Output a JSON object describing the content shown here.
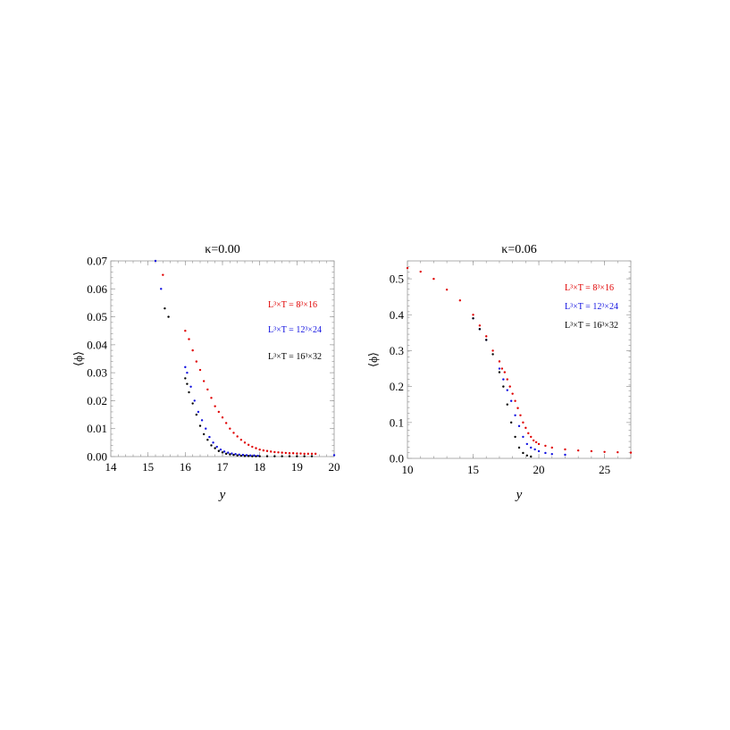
{
  "chart_data": [
    {
      "type": "scatter",
      "title": "κ=0.00",
      "xlabel": "y",
      "ylabel": "⟨ϕ⟩",
      "xlim": [
        14,
        20
      ],
      "ylim": [
        0,
        0.07
      ],
      "xticks": [
        "14",
        "15",
        "16",
        "17",
        "18",
        "19",
        "20"
      ],
      "yticks": [
        "0.00",
        "0.01",
        "0.02",
        "0.03",
        "0.04",
        "0.05",
        "0.06",
        "0.07"
      ],
      "legend": [
        "L³×T = 8³×16",
        "L³×T = 12³×24",
        "L³×T = 16³×32"
      ],
      "legend_placement": "right",
      "series": [
        {
          "name": "L³×T = 8³×16",
          "color": "#e00000",
          "x": [
            15.4,
            16.0,
            16.1,
            16.2,
            16.3,
            16.4,
            16.5,
            16.6,
            16.7,
            16.8,
            16.9,
            17.0,
            17.1,
            17.2,
            17.3,
            17.4,
            17.5,
            17.6,
            17.7,
            17.8,
            17.9,
            18.0,
            18.1,
            18.2,
            18.3,
            18.4,
            18.5,
            18.6,
            18.7,
            18.8,
            18.9,
            19.0,
            19.1,
            19.2,
            19.3,
            19.4,
            19.5
          ],
          "y": [
            0.065,
            0.045,
            0.042,
            0.038,
            0.034,
            0.031,
            0.027,
            0.024,
            0.021,
            0.018,
            0.016,
            0.014,
            0.012,
            0.01,
            0.0085,
            0.0072,
            0.006,
            0.005,
            0.0042,
            0.0035,
            0.003,
            0.0025,
            0.0022,
            0.002,
            0.0018,
            0.0016,
            0.0015,
            0.0014,
            0.0013,
            0.0012,
            0.0012,
            0.0011,
            0.0011,
            0.001,
            0.001,
            0.001,
            0.001
          ]
        },
        {
          "name": "L³×T = 12³×24",
          "color": "#1010e0",
          "x": [
            15.2,
            15.35,
            16.0,
            16.05,
            16.15,
            16.25,
            16.35,
            16.45,
            16.55,
            16.65,
            16.75,
            16.85,
            16.95,
            17.05,
            17.15,
            17.25,
            17.35,
            17.45,
            17.55,
            17.65,
            17.75,
            17.85,
            17.95,
            20.0
          ],
          "y": [
            0.07,
            0.06,
            0.032,
            0.03,
            0.025,
            0.02,
            0.016,
            0.013,
            0.01,
            0.007,
            0.005,
            0.0035,
            0.0025,
            0.0018,
            0.0014,
            0.0011,
            0.0009,
            0.0007,
            0.0006,
            0.0005,
            0.0004,
            0.0004,
            0.0003,
            0.0005
          ]
        },
        {
          "name": "L³×T = 16³×32",
          "color": "#000000",
          "x": [
            15.45,
            15.55,
            16.0,
            16.05,
            16.1,
            16.2,
            16.3,
            16.4,
            16.5,
            16.6,
            16.7,
            16.8,
            16.9,
            17.0,
            17.1,
            17.2,
            17.3,
            17.4,
            17.5,
            17.6,
            17.7,
            17.8,
            17.9,
            18.0,
            18.2,
            18.4,
            18.6,
            18.8,
            19.0,
            19.2,
            19.4
          ],
          "y": [
            0.053,
            0.05,
            0.028,
            0.026,
            0.023,
            0.019,
            0.015,
            0.011,
            0.008,
            0.006,
            0.004,
            0.003,
            0.002,
            0.0015,
            0.001,
            0.0008,
            0.0006,
            0.0004,
            0.0003,
            0.0002,
            0.0002,
            0.0001,
            0.0001,
            0.0001,
            0.0001,
            0.0001,
            0.0001,
            0.0001,
            0.0001,
            0.0001,
            0.0001
          ]
        }
      ]
    },
    {
      "type": "scatter",
      "title": "κ=0.06",
      "xlabel": "y",
      "ylabel": "⟨ϕ⟩",
      "xlim": [
        10,
        27
      ],
      "ylim": [
        0,
        0.55
      ],
      "xticks": [
        "10",
        "15",
        "20",
        "25"
      ],
      "yticks": [
        "0.0",
        "0.1",
        "0.2",
        "0.3",
        "0.4",
        "0.5"
      ],
      "legend": [
        "L³×T = 8³×16",
        "L³×T = 12³×24",
        "L³×T = 16³×32"
      ],
      "legend_placement": "top-right",
      "series": [
        {
          "name": "L³×T = 8³×16",
          "color": "#e00000",
          "x": [
            10,
            11,
            12,
            13,
            14,
            15,
            15.5,
            16,
            16.5,
            17,
            17.2,
            17.4,
            17.6,
            17.8,
            18.0,
            18.2,
            18.4,
            18.6,
            18.8,
            19.0,
            19.2,
            19.4,
            19.6,
            19.8,
            20.0,
            20.5,
            21,
            22,
            23,
            24,
            25,
            26,
            27
          ],
          "y": [
            0.53,
            0.52,
            0.5,
            0.47,
            0.44,
            0.4,
            0.37,
            0.34,
            0.3,
            0.27,
            0.25,
            0.24,
            0.22,
            0.2,
            0.18,
            0.16,
            0.14,
            0.12,
            0.1,
            0.085,
            0.07,
            0.06,
            0.05,
            0.045,
            0.04,
            0.035,
            0.03,
            0.025,
            0.022,
            0.02,
            0.018,
            0.017,
            0.016
          ]
        },
        {
          "name": "L³×T = 12³×24",
          "color": "#1010e0",
          "x": [
            15,
            15.5,
            16,
            17,
            17.3,
            17.6,
            17.9,
            18.2,
            18.5,
            18.8,
            19.1,
            19.4,
            19.7,
            20,
            20.5,
            21,
            22
          ],
          "y": [
            0.39,
            0.36,
            0.33,
            0.25,
            0.22,
            0.19,
            0.16,
            0.12,
            0.09,
            0.06,
            0.04,
            0.03,
            0.025,
            0.02,
            0.015,
            0.012,
            0.01
          ]
        },
        {
          "name": "L³×T = 16³×32",
          "color": "#000000",
          "x": [
            15,
            15.5,
            16,
            16.5,
            17,
            17.3,
            17.6,
            17.9,
            18.2,
            18.5,
            18.8,
            19.1,
            19.4
          ],
          "y": [
            0.39,
            0.36,
            0.33,
            0.29,
            0.24,
            0.2,
            0.15,
            0.1,
            0.06,
            0.03,
            0.015,
            0.008,
            0.005
          ]
        }
      ]
    }
  ]
}
